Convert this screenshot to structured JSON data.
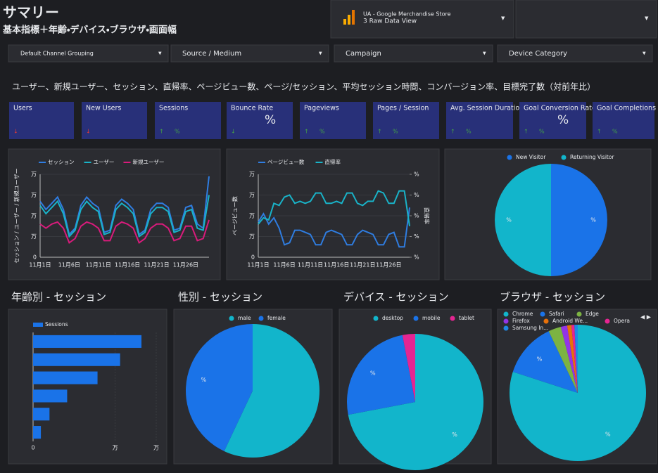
{
  "header": {
    "title": "サマリー",
    "subtitle": "基本指標＋年齢・デバイス・ブラウザ・画面幅"
  },
  "account": {
    "property": "UA - Google Merchandise Store",
    "view": "3 Raw Data View"
  },
  "filters": [
    "Default Channel Grouping",
    "Source / Medium",
    "Campaign",
    "Device Category"
  ],
  "heading": "ユーザー、新規ユーザー、セッション、直帰率、ページビュー数、ページ/セッション、平均セッション時間、コンバージョン率、目標完了数（対前年比）",
  "kpis": [
    {
      "label": "Users",
      "direction": "down",
      "color": "#e53935"
    },
    {
      "label": "New Users",
      "direction": "down",
      "color": "#e53935"
    },
    {
      "label": "Sessions",
      "delta": "%",
      "direction": "up",
      "color": "#43a047"
    },
    {
      "label": "Bounce Rate",
      "value": "%",
      "direction": "down",
      "color": "#43a047"
    },
    {
      "label": "Pageviews",
      "delta": "%",
      "direction": "up",
      "color": "#43a047"
    },
    {
      "label": "Pages / Session",
      "delta": "%",
      "direction": "up",
      "color": "#43a047"
    },
    {
      "label": "Avg. Session Duration",
      "delta": "%",
      "direction": "up",
      "color": "#43a047"
    },
    {
      "label": "Goal Conversion Rate",
      "value": "%",
      "delta": "%",
      "direction": "up",
      "color": "#43a047"
    },
    {
      "label": "Goal Completions",
      "delta": "%",
      "direction": "up",
      "color": "#43a047"
    }
  ],
  "section_titles": [
    "年齢別 - セッション",
    "性別 - セッション",
    "デバイス - セッション",
    "ブラウザ - セッション"
  ],
  "chart_data": [
    {
      "type": "line",
      "y_title": "セッション / ユーザー / 新規ユーザー",
      "categories": [
        "11月1日",
        null,
        null,
        null,
        null,
        "11月6日",
        null,
        null,
        null,
        null,
        "11月11日",
        null,
        null,
        null,
        null,
        "11月16日",
        null,
        null,
        null,
        null,
        "11月21日",
        null,
        null,
        null,
        null,
        "11月26日",
        null,
        null,
        null,
        null
      ],
      "series": [
        {
          "name": "セッション",
          "color": "#2f7de1",
          "values": [
            2.7,
            2.3,
            2.6,
            2.9,
            2.3,
            1.1,
            1.4,
            2.5,
            2.9,
            2.6,
            2.4,
            1.2,
            1.3,
            2.5,
            2.8,
            2.6,
            2.3,
            1.1,
            1.3,
            2.3,
            2.6,
            2.6,
            2.4,
            1.3,
            1.4,
            2.4,
            2.5,
            1.6,
            1.4,
            3.9
          ]
        },
        {
          "name": "ユーザー",
          "color": "#19b3c8",
          "values": [
            2.5,
            2.1,
            2.4,
            2.7,
            2.1,
            1.0,
            1.3,
            2.3,
            2.7,
            2.4,
            2.2,
            1.1,
            1.2,
            2.3,
            2.6,
            2.4,
            2.1,
            1.0,
            1.2,
            2.1,
            2.4,
            2.4,
            2.2,
            1.2,
            1.3,
            2.2,
            2.3,
            1.4,
            1.3,
            3.0
          ]
        },
        {
          "name": "新規ユーザー",
          "color": "#d81b7b",
          "values": [
            1.6,
            1.4,
            1.6,
            1.7,
            1.4,
            0.7,
            0.9,
            1.5,
            1.7,
            1.6,
            1.4,
            0.8,
            0.8,
            1.5,
            1.7,
            1.6,
            1.4,
            0.7,
            0.9,
            1.4,
            1.6,
            1.6,
            1.4,
            0.8,
            0.9,
            1.5,
            1.5,
            0.8,
            0.9,
            1.8
          ]
        }
      ],
      "ylim": [
        0,
        4
      ],
      "yticks": [
        0,
        {
          "value": 1,
          "label": "万"
        },
        {
          "value": 2,
          "label": "万"
        },
        {
          "value": 3,
          "label": "万"
        },
        {
          "value": 4,
          "label": "万"
        }
      ],
      "grid": true
    },
    {
      "type": "line",
      "y_title": "ページビュー数",
      "y2_title": "直帰率",
      "categories": [
        "11月1日",
        null,
        null,
        null,
        null,
        "11月6日",
        null,
        null,
        null,
        null,
        "11月11日",
        null,
        null,
        null,
        null,
        "11月16日",
        null,
        null,
        null,
        null,
        "11月21日",
        null,
        null,
        null,
        null,
        "11月26日",
        null,
        null,
        null,
        null
      ],
      "series": [
        {
          "name": "ページビュー数",
          "color": "#2f7de1",
          "values": [
            1.7,
            2.1,
            1.6,
            1.9,
            1.4,
            0.6,
            0.7,
            1.3,
            1.3,
            1.2,
            1.1,
            0.6,
            0.6,
            1.2,
            1.3,
            1.2,
            1.1,
            0.6,
            0.6,
            1.1,
            1.3,
            1.2,
            1.1,
            0.6,
            0.6,
            1.1,
            1.2,
            0.5,
            0.5,
            2.4
          ]
        },
        {
          "name": "直帰率",
          "color": "#19b3c8",
          "axis": "y2",
          "values": [
            1.6,
            1.9,
            1.8,
            2.6,
            2.5,
            2.9,
            3.0,
            2.6,
            2.7,
            2.6,
            2.7,
            3.1,
            3.1,
            2.6,
            2.6,
            2.7,
            2.6,
            3.1,
            3.1,
            2.6,
            2.5,
            2.7,
            2.7,
            3.2,
            3.1,
            2.6,
            2.6,
            3.2,
            3.2,
            1.5
          ]
        }
      ],
      "ylim": [
        0,
        4
      ],
      "yticks": [
        0,
        {
          "value": 1,
          "label": "万"
        },
        {
          "value": 2,
          "label": "万"
        },
        {
          "value": 3,
          "label": "万"
        },
        {
          "value": 4,
          "label": "万"
        }
      ],
      "y2lim": [
        0,
        4
      ],
      "y2ticks": [
        {
          "value": 0,
          "label": "%"
        },
        {
          "value": 1,
          "label": "%"
        },
        {
          "value": 2,
          "label": "%"
        },
        {
          "value": 3,
          "label": "%"
        },
        {
          "value": 4,
          "label": "%"
        }
      ],
      "grid": true
    },
    {
      "type": "pie",
      "categories": [
        "New Visitor",
        "Returning Visitor"
      ],
      "values": [
        50,
        50
      ],
      "value_labels": [
        "%",
        "%"
      ],
      "colors": [
        "#1a73e8",
        "#12b5cb"
      ]
    },
    {
      "type": "hbar",
      "series_name": "Sessions",
      "color": "#1a73e8",
      "categories": [
        null,
        null,
        null,
        null,
        null,
        null
      ],
      "values": [
        2.64,
        2.12,
        1.57,
        0.83,
        0.4,
        0.19
      ],
      "xlim": [
        0,
        3
      ],
      "xticks": [
        0,
        {
          "value": 2,
          "label": "万"
        },
        {
          "value": 3,
          "label": "万"
        }
      ],
      "grid": true
    },
    {
      "type": "pie",
      "categories": [
        "male",
        "female"
      ],
      "values": [
        57,
        43
      ],
      "value_labels": [
        null,
        "%"
      ],
      "colors": [
        "#12b5cb",
        "#1a73e8"
      ]
    },
    {
      "type": "pie",
      "categories": [
        "desktop",
        "mobile",
        "tablet"
      ],
      "values": [
        72,
        25,
        3
      ],
      "value_labels": [
        "%",
        "%",
        null
      ],
      "colors": [
        "#12b5cb",
        "#1a73e8",
        "#e52592"
      ]
    },
    {
      "type": "pie",
      "categories": [
        "Chrome",
        "Safari",
        "Edge",
        "Firefox",
        "Android We...",
        "Opera",
        "Samsung In..."
      ],
      "values": [
        80,
        13,
        3,
        1.5,
        1,
        0.7,
        0.8
      ],
      "value_labels": [
        "%",
        "%",
        null,
        null,
        null,
        null,
        null
      ],
      "colors": [
        "#12b5cb",
        "#1a73e8",
        "#7cb342",
        "#9334e6",
        "#e8710a",
        "#e52592",
        "#1e88e5"
      ]
    }
  ]
}
